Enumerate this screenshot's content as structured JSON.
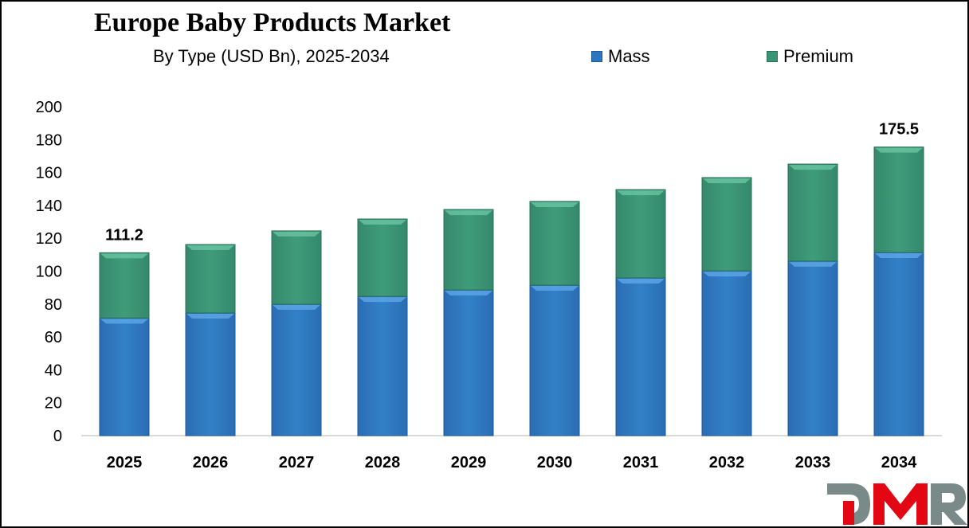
{
  "chart_data": {
    "type": "bar",
    "stacked": true,
    "title": "Europe Baby Products Market",
    "subtitle": "By Type (USD Bn), 2025-2034",
    "xlabel": "",
    "ylabel": "",
    "ylim": [
      0,
      200
    ],
    "yticks": [
      0,
      20,
      40,
      60,
      80,
      100,
      120,
      140,
      160,
      180,
      200
    ],
    "grid": false,
    "legend_position": "top-right",
    "categories": [
      "2025",
      "2026",
      "2027",
      "2028",
      "2029",
      "2030",
      "2031",
      "2032",
      "2033",
      "2034"
    ],
    "series": [
      {
        "name": "Mass",
        "color": "#2e75c0",
        "values": [
          71.5,
          74.6,
          79.9,
          84.7,
          88.6,
          91.5,
          95.9,
          100.2,
          106.1,
          111.4
        ]
      },
      {
        "name": "Premium",
        "color": "#3a9475",
        "values": [
          39.7,
          41.6,
          44.6,
          47.0,
          48.9,
          50.9,
          53.7,
          56.7,
          59.0,
          64.1
        ]
      }
    ],
    "annotations": [
      {
        "category": "2025",
        "text": "111.2"
      },
      {
        "category": "2034",
        "text": "175.5"
      }
    ]
  },
  "header": {
    "title": "Europe Baby Products Market",
    "subtitle": "By Type (USD Bn), 2025-2034"
  },
  "legend": {
    "items": [
      {
        "label": "Mass",
        "color": "#2e75c0"
      },
      {
        "label": "Premium",
        "color": "#3a9475"
      }
    ]
  },
  "logo": {
    "text": "DMR",
    "colors": {
      "gray": "#7a8a88",
      "red": "#e30613"
    }
  }
}
